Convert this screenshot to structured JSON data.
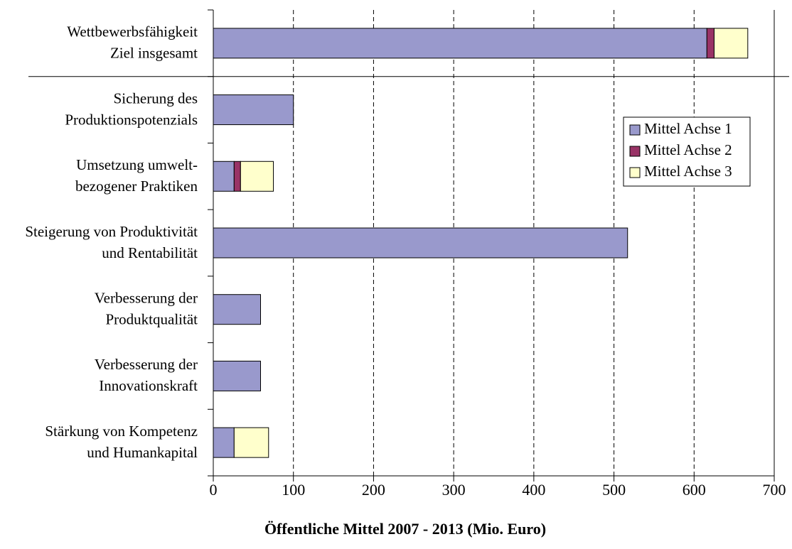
{
  "chart_data": {
    "type": "stacked-barh",
    "xlabel": "Öffentliche Mittel 2007 - 2013 (Mio. Euro)",
    "categories": [
      [
        "Wettbewerbsfähigkeit",
        "Ziel insgesamt"
      ],
      [
        "Sicherung des",
        "Produktionspotenzials"
      ],
      [
        "Umsetzung umwelt-",
        "bezogener Praktiken"
      ],
      [
        "Steigerung von Produktivität",
        "und Rentabilität"
      ],
      [
        "Verbesserung der",
        "Produktqualität"
      ],
      [
        "Verbesserung der",
        "Innovationskraft"
      ],
      [
        "Stärkung von Kompetenz",
        "und Humankapital"
      ]
    ],
    "series": [
      {
        "name": "Mittel Achse 1",
        "color": "#9999cc",
        "values": [
          616,
          100,
          26,
          517,
          59,
          59,
          26
        ]
      },
      {
        "name": "Mittel Achse 2",
        "color": "#993366",
        "values": [
          9,
          0,
          8,
          0,
          0,
          0,
          0
        ]
      },
      {
        "name": "Mittel Achse 3",
        "color": "#ffffcc",
        "values": [
          42,
          0,
          41,
          0,
          0,
          0,
          43
        ]
      }
    ],
    "xlim": [
      0,
      700
    ],
    "xticks": [
      0,
      100,
      200,
      300,
      400,
      500,
      600,
      700
    ],
    "grid": true,
    "legend": "upper right"
  }
}
